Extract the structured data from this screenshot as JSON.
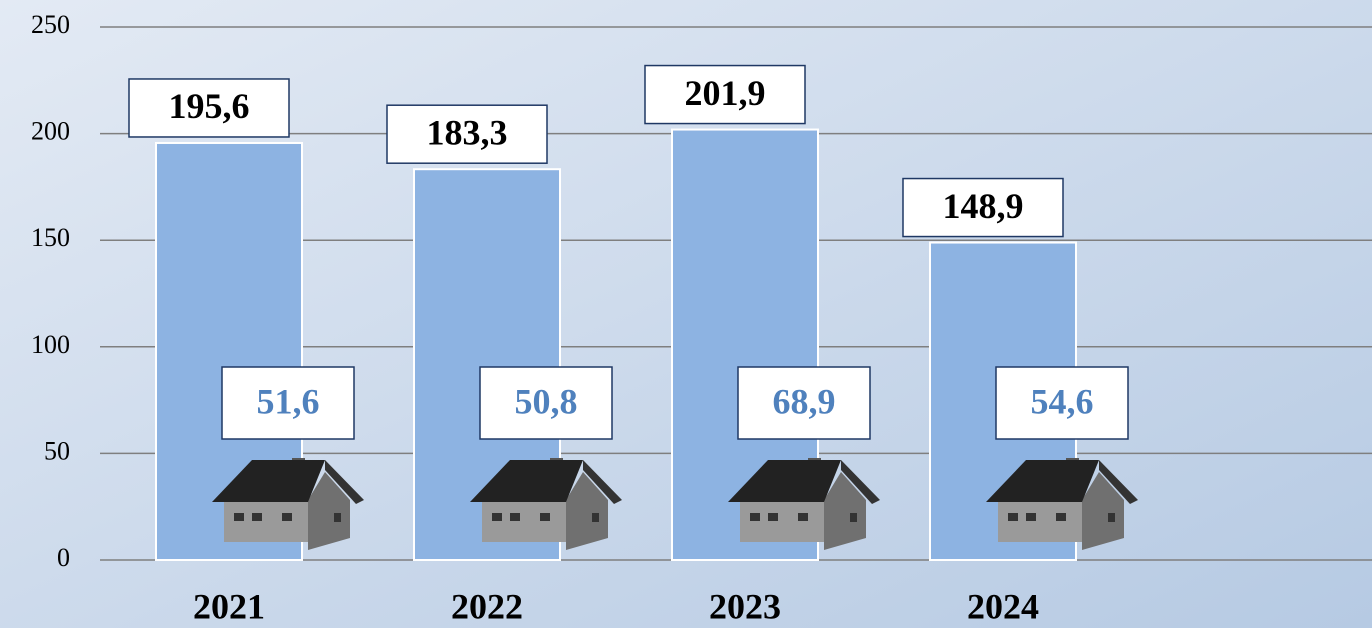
{
  "chart_data": {
    "type": "bar",
    "categories": [
      "2021",
      "2022",
      "2023",
      "2024"
    ],
    "series": [
      {
        "color": "#8db3e2",
        "values": [
          195.6,
          183.3,
          201.9,
          148.9
        ],
        "value_labels": [
          "195,6",
          "183,3",
          "201,9",
          "148,9"
        ]
      },
      {
        "color": "#4f81bd",
        "values": [
          51.6,
          50.8,
          68.9,
          54.6
        ],
        "value_labels": [
          "51,6",
          "50,8",
          "68,9",
          "54,6"
        ]
      }
    ],
    "ylim": [
      0,
      250
    ],
    "yticks": [
      0,
      50,
      100,
      150,
      200,
      250
    ],
    "grid": true
  }
}
